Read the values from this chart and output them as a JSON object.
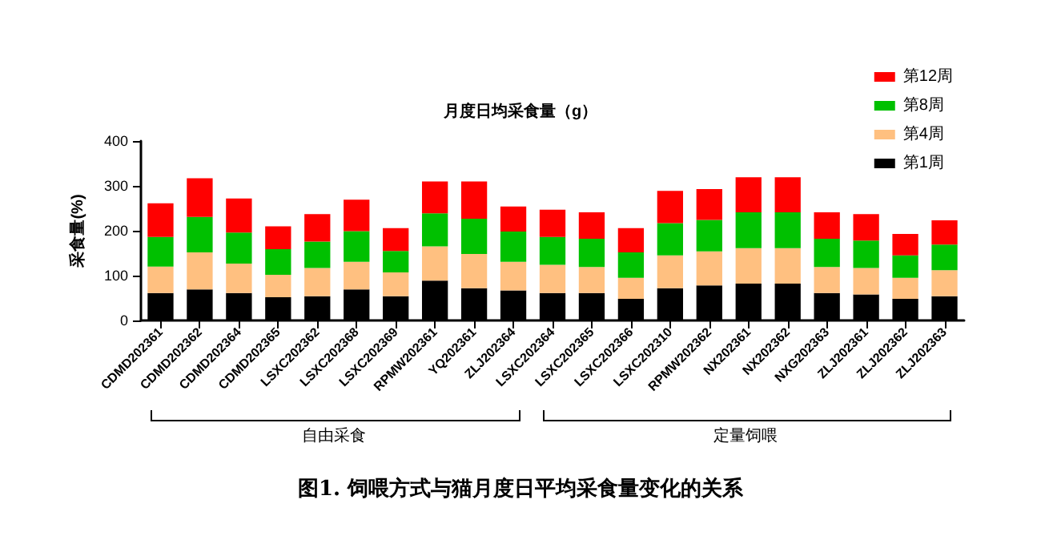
{
  "chart_data": {
    "type": "bar",
    "stacked": true,
    "title": "月度日均采食量（g）",
    "ylabel": "采食量(%)",
    "categories": [
      "CDMD202361",
      "CDMD202362",
      "CDMD202364",
      "CDMD202365",
      "LSXC202362",
      "LSXC202368",
      "LSXC202369",
      "RPMW202361",
      "YQ202361",
      "ZLJ202364",
      "LSXC202364",
      "LSXC202365",
      "LSXC202366",
      "LSXC202310",
      "RPMW202362",
      "NX202361",
      "NX202362",
      "NXG202363",
      "ZLJ202361",
      "ZLJ202362",
      "ZLJ202363"
    ],
    "series": [
      {
        "name": "第1周",
        "color": "#000000",
        "values": [
          61,
          69,
          61,
          52,
          54,
          69,
          54,
          89,
          72,
          67,
          61,
          61,
          48,
          72,
          78,
          82,
          82,
          61,
          58,
          48,
          54
        ]
      },
      {
        "name": "第4周",
        "color": "#ffc080",
        "values": [
          59,
          83,
          66,
          50,
          63,
          62,
          53,
          76,
          76,
          64,
          63,
          58,
          47,
          73,
          76,
          79,
          79,
          58,
          59,
          47,
          58
        ]
      },
      {
        "name": "第8周",
        "color": "#00c000",
        "values": [
          66,
          79,
          69,
          57,
          59,
          68,
          48,
          74,
          79,
          67,
          62,
          63,
          57,
          72,
          70,
          80,
          80,
          63,
          61,
          50,
          57
        ]
      },
      {
        "name": "第12周",
        "color": "#ff0000",
        "values": [
          75,
          86,
          76,
          51,
          61,
          70,
          51,
          71,
          83,
          56,
          61,
          59,
          54,
          72,
          69,
          78,
          78,
          59,
          59,
          48,
          54
        ]
      }
    ],
    "ylim": [
      0,
      400
    ],
    "yticks": [
      0,
      100,
      200,
      300,
      400
    ],
    "grid": false,
    "legend": "top right",
    "annotations": [
      "自由采食",
      "定量饲喂",
      "图1. 饲喂方式与猫月度日平均采食量变化的关系"
    ]
  }
}
